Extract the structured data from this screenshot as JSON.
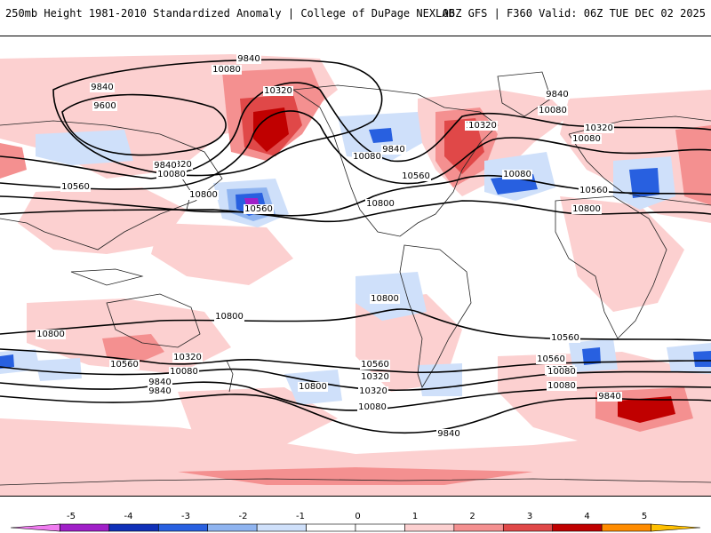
{
  "header": {
    "left": "250mb Height 1981-2010 Standardized Anomaly | College of DuPage NEXLAB",
    "right": "06Z GFS | F360 Valid: 06Z TUE DEC 02 2025"
  },
  "contour_labels": [
    "9840",
    "10080",
    "9840",
    "9600",
    "10320",
    "9840",
    "10080",
    "10320",
    "10560",
    "10800",
    "10560",
    "9840",
    "10080",
    "10560",
    "10800",
    "10320",
    "9840",
    "10080",
    "10320",
    "10080",
    "10560",
    "10800",
    "10800",
    "10800",
    "10800",
    "10560",
    "10320",
    "10080",
    "9840",
    "10800",
    "10560",
    "10320",
    "10080",
    "9840",
    "10560",
    "10320",
    "10080",
    "9840",
    "10320",
    "10080",
    "10560",
    "10320",
    "10080",
    "9840"
  ],
  "legend": {
    "colors": [
      "#f07cf0",
      "#a020c8",
      "#1030b8",
      "#2860e0",
      "#8fb4f0",
      "#cfe0fa",
      "#ffffff",
      "#ffffff",
      "#fcd0d0",
      "#f49090",
      "#e04848",
      "#c00000",
      "#ff8c00",
      "#ffc000"
    ],
    "tick_labels": [
      "-5",
      "-4",
      "-3",
      "-2",
      "-1",
      "0",
      "1",
      "2",
      "3",
      "4",
      "5"
    ]
  },
  "colors": {
    "pos1": "#fcd0d0",
    "pos2": "#f49090",
    "pos3": "#e04848",
    "pos4": "#c00000",
    "neg1": "#cfe0fa",
    "neg2": "#8fb4f0",
    "neg3": "#2860e0",
    "neg4": "#1030b8",
    "neg5": "#a020c8"
  }
}
